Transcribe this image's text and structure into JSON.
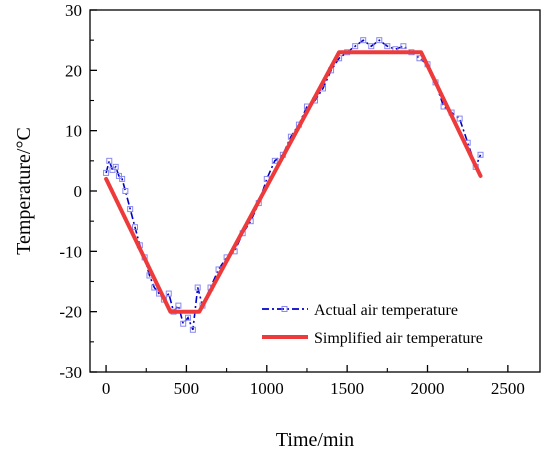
{
  "chart_data": {
    "type": "line",
    "xlabel": "Time/min",
    "ylabel": "Temperature/°C",
    "xlim": [
      -100,
      2700
    ],
    "ylim": [
      -30,
      30
    ],
    "x_ticks": [
      0,
      500,
      1000,
      1500,
      2000,
      2500
    ],
    "y_ticks": [
      -30,
      -20,
      -10,
      0,
      10,
      20,
      30
    ],
    "grid": false,
    "legend_position": "bottom-right",
    "series": [
      {
        "name": "Actual air temperature",
        "color": "#0000cc",
        "style": "dash-dot with open square markers",
        "x": [
          0,
          20,
          40,
          60,
          80,
          100,
          120,
          150,
          180,
          210,
          240,
          270,
          300,
          330,
          360,
          390,
          420,
          450,
          480,
          510,
          540,
          570,
          600,
          650,
          700,
          750,
          800,
          850,
          900,
          950,
          1000,
          1050,
          1100,
          1150,
          1200,
          1250,
          1300,
          1350,
          1400,
          1450,
          1500,
          1550,
          1600,
          1650,
          1700,
          1750,
          1800,
          1850,
          1900,
          1950,
          2000,
          2050,
          2100,
          2150,
          2200,
          2250,
          2300,
          2330
        ],
        "y": [
          3,
          5,
          3.5,
          4,
          2.5,
          2,
          0,
          -3,
          -6,
          -9,
          -11,
          -14,
          -16,
          -17,
          -18,
          -17,
          -20,
          -19,
          -22,
          -21,
          -23,
          -16,
          -19,
          -16,
          -13,
          -11,
          -10,
          -7,
          -5,
          -2,
          2,
          5,
          6,
          9,
          11,
          14,
          15,
          17,
          20,
          22,
          23,
          24,
          25,
          24,
          25,
          24,
          23.5,
          24,
          23,
          22,
          21,
          18,
          14,
          13,
          12,
          8,
          4,
          6
        ]
      },
      {
        "name": "Simplified air temperature",
        "color": "#ee3a3a",
        "style": "solid thick line",
        "x": [
          0,
          400,
          580,
          1450,
          1960,
          2330
        ],
        "y": [
          2,
          -20,
          -20,
          23,
          23,
          2.5
        ]
      }
    ]
  }
}
